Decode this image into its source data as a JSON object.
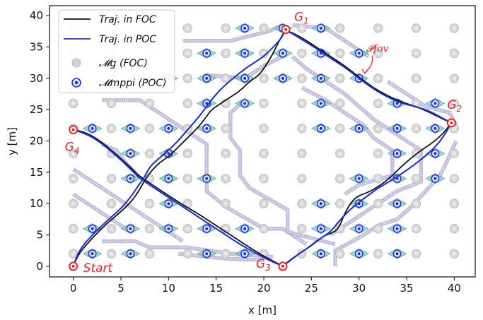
{
  "chart_data": {
    "type": "scatter",
    "xlabel": "x [m]",
    "ylabel": "y [m]",
    "xlim": [
      -2.5,
      42.2
    ],
    "ylim": [
      -1.7,
      41.6
    ],
    "xticks": [
      0,
      5,
      10,
      15,
      20,
      25,
      30,
      35,
      40
    ],
    "yticks": [
      0,
      5,
      10,
      15,
      20,
      25,
      30,
      35,
      40
    ],
    "grid": false,
    "legend_position": "top-left",
    "legend": [
      {
        "label": "Traj.  in FOC",
        "kind": "line",
        "color": "#111111"
      },
      {
        "label": "Traj.  in POC",
        "kind": "line",
        "color": "#1f2fd6"
      },
      {
        "label": "𝓜g (FOC)",
        "kind": "marker-gray"
      },
      {
        "label": "𝓜mppi (POC)",
        "kind": "marker-blue"
      }
    ],
    "goals": [
      {
        "label": "Start",
        "x": 0,
        "y": 0
      },
      {
        "label": "G1",
        "x": 22.3,
        "y": 37.8
      },
      {
        "label": "G2",
        "x": 39.7,
        "y": 22.9
      },
      {
        "label": "G3",
        "x": 22.0,
        "y": 0
      },
      {
        "label": "G4",
        "x": 0,
        "y": 21.8
      }
    ],
    "fov_annotation": {
      "label": "𝓟fov",
      "x": 31.2,
      "y": 34.2,
      "arrow_to": [
        30.6,
        30.8
      ]
    },
    "series": [
      {
        "name": "Traj.  in FOC",
        "color": "#111111",
        "x": [
          0,
          0.4,
          1.0,
          2.0,
          3.5,
          5.0,
          6.2,
          7.0,
          7.6,
          8.2,
          9.0,
          10.0,
          11.0,
          12.0,
          13.0,
          13.8,
          14.5,
          15.5,
          16.5,
          17.5,
          18.5,
          19.5,
          20.2,
          20.8,
          21.3,
          21.8,
          22.3,
          24.0,
          25.5,
          27.0,
          28.5,
          30.0,
          31.5,
          33.0,
          34.5,
          36.0,
          37.5,
          38.8,
          39.7,
          39.0,
          38.0,
          36.5,
          35.5,
          34.5,
          33.5,
          32.5,
          31.0,
          29.5,
          28.5,
          28.0,
          27.5,
          26.5,
          25.5,
          24.5,
          23.5,
          22.5,
          22.0,
          20.5,
          19.0,
          17.5,
          16.0,
          14.5,
          13.0,
          11.5,
          10.0,
          8.5,
          7.0,
          6.0,
          5.0,
          4.0,
          3.0,
          2.0,
          1.0,
          0
        ],
        "y": [
          0,
          1.5,
          2.8,
          4.5,
          6.8,
          8.7,
          10.5,
          12.3,
          14.0,
          15.2,
          16.5,
          17.5,
          19.0,
          20.5,
          22.0,
          23.5,
          25.0,
          26.0,
          27.0,
          28.0,
          29.5,
          30.5,
          32.0,
          33.5,
          35.0,
          36.5,
          37.8,
          36.5,
          35.0,
          33.5,
          32.0,
          30.2,
          28.5,
          27.2,
          26.2,
          25.5,
          24.5,
          23.5,
          22.9,
          21.5,
          20.0,
          18.5,
          17.3,
          16.0,
          14.5,
          13.2,
          11.8,
          11.0,
          8.5,
          6.5,
          5.5,
          5.0,
          4.0,
          2.8,
          1.8,
          0.7,
          0,
          1.2,
          2.5,
          4.0,
          5.5,
          7.0,
          8.5,
          9.8,
          11.3,
          12.8,
          14.3,
          15.8,
          17.2,
          18.5,
          19.8,
          20.8,
          21.5,
          21.8
        ]
      },
      {
        "name": "Traj.  in POC",
        "color": "#1f2fd6",
        "x": [
          0,
          0.4,
          1.0,
          2.0,
          3.5,
          5.0,
          6.0,
          6.8,
          7.5,
          8.0,
          8.8,
          9.8,
          11.0,
          12.0,
          13.0,
          14.0,
          15.0,
          16.0,
          17.0,
          18.0,
          19.0,
          20.0,
          21.0,
          21.8,
          22.3,
          24.0,
          25.5,
          27.0,
          28.5,
          30.0,
          31.5,
          33.0,
          34.5,
          36.0,
          37.5,
          38.8,
          39.7,
          39.0,
          38.0,
          36.5,
          35.0,
          33.5,
          32.0,
          30.5,
          29.0,
          27.8,
          27.0,
          26.0,
          25.0,
          24.0,
          23.0,
          22.0,
          20.5,
          19.0,
          17.5,
          16.0,
          14.5,
          13.0,
          11.5,
          10.0,
          8.5,
          7.0,
          6.0,
          5.0,
          4.0,
          3.0,
          2.0,
          1.0,
          0
        ],
        "y": [
          0,
          1.8,
          3.3,
          5.0,
          7.2,
          9.2,
          11.0,
          12.8,
          14.3,
          15.8,
          17.0,
          18.2,
          20.0,
          21.8,
          23.5,
          25.5,
          27.5,
          29.0,
          30.3,
          31.5,
          32.5,
          33.5,
          35.0,
          36.3,
          37.8,
          36.2,
          34.8,
          33.2,
          31.8,
          30.0,
          28.3,
          27.0,
          26.0,
          25.5,
          24.7,
          23.6,
          22.9,
          21.0,
          19.0,
          17.0,
          15.3,
          13.8,
          12.5,
          10.8,
          9.0,
          7.0,
          5.5,
          4.5,
          3.3,
          2.3,
          1.2,
          0,
          1.0,
          2.2,
          3.5,
          5.0,
          6.5,
          8.0,
          9.5,
          11.0,
          12.5,
          14.0,
          15.5,
          17.0,
          18.3,
          19.6,
          20.6,
          21.3,
          21.8
        ]
      }
    ],
    "mg_foc_points_x": [
      0,
      4,
      8,
      12,
      16,
      20,
      24,
      28,
      32,
      36,
      40
    ],
    "mg_foc_points_y": [
      2,
      6,
      10,
      14,
      18,
      22,
      26,
      30,
      34,
      38
    ],
    "mmppi_poc_points": [
      [
        2,
        2
      ],
      [
        6,
        2
      ],
      [
        14,
        2
      ],
      [
        18,
        2
      ],
      [
        26,
        2
      ],
      [
        30,
        2
      ],
      [
        34,
        2
      ],
      [
        2,
        6
      ],
      [
        6,
        6
      ],
      [
        10,
        6
      ],
      [
        14,
        6
      ],
      [
        18,
        6
      ],
      [
        26,
        6
      ],
      [
        30,
        6
      ],
      [
        34,
        6
      ],
      [
        10,
        10
      ],
      [
        26,
        10
      ],
      [
        30,
        10
      ],
      [
        34,
        10
      ],
      [
        6,
        14
      ],
      [
        10,
        14
      ],
      [
        14,
        14
      ],
      [
        30,
        14
      ],
      [
        34,
        14
      ],
      [
        38,
        14
      ],
      [
        6,
        18
      ],
      [
        10,
        18
      ],
      [
        34,
        18
      ],
      [
        38,
        18
      ],
      [
        2,
        22
      ],
      [
        6,
        22
      ],
      [
        10,
        22
      ],
      [
        14,
        22
      ],
      [
        26,
        22
      ],
      [
        30,
        22
      ],
      [
        34,
        22
      ],
      [
        38,
        22
      ],
      [
        14,
        26
      ],
      [
        18,
        26
      ],
      [
        26,
        26
      ],
      [
        34,
        26
      ],
      [
        38,
        26
      ],
      [
        10,
        30
      ],
      [
        14,
        30
      ],
      [
        18,
        30
      ],
      [
        22,
        30
      ],
      [
        26,
        30
      ],
      [
        30,
        30
      ],
      [
        14,
        34
      ],
      [
        18,
        34
      ],
      [
        22,
        34
      ],
      [
        26,
        34
      ],
      [
        30,
        34
      ],
      [
        18,
        38
      ],
      [
        22,
        38
      ],
      [
        26,
        38
      ]
    ]
  }
}
